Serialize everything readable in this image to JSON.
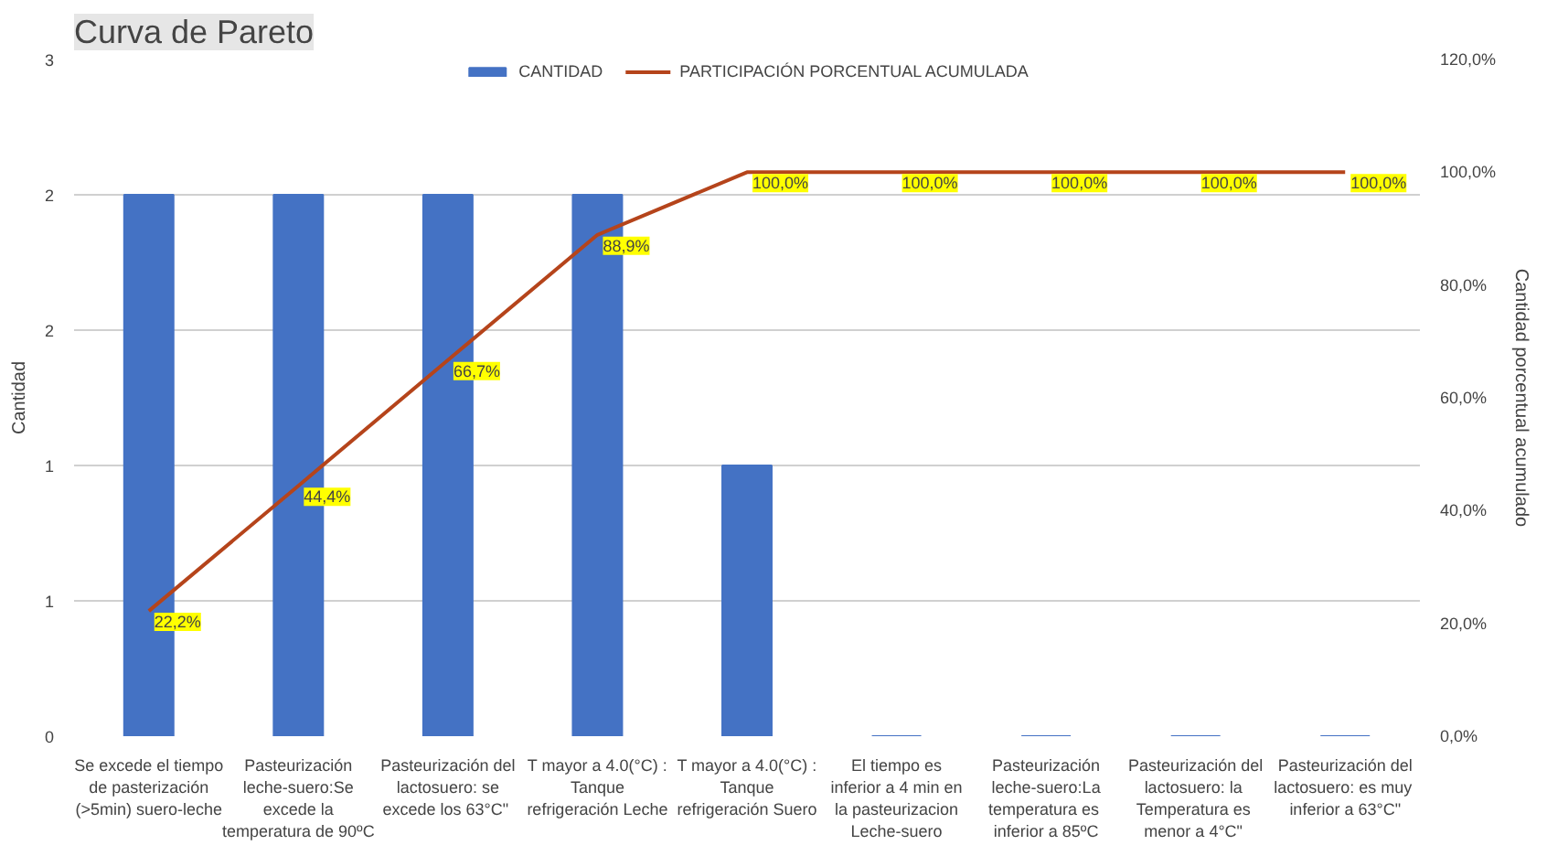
{
  "chart_data": {
    "type": "bar",
    "title": "Curva de Pareto",
    "ylabel": "Cantidad",
    "y2label": "Cantidad porcentual acumulado",
    "categories": [
      "Se excede el tiempo de pasterización (>5min) suero-leche",
      "Pasteurización leche-suero:Se excede la temperatura de 90ºC",
      "Pasteurización del lactosuero: se excede  los 63°C\"",
      "T mayor a 4.0(°C) : Tanque refrigeración Leche",
      "T mayor a 4.0(°C) : Tanque refrigeración Suero",
      "El tiempo es inferior a 4 min en la pasteurizacion Leche-suero",
      "Pasteurización leche-suero:La temperatura  es inferior a 85ºC",
      "Pasteurización del lactosuero:  la Temperatura  es menor a  4°C\"",
      "Pasteurización del lactosuero:  es muy inferior a 63°C\""
    ],
    "series": [
      {
        "name": "CANTIDAD",
        "color": "#4472c4",
        "values": [
          2,
          2,
          2,
          2,
          1,
          0,
          0,
          0,
          0
        ]
      },
      {
        "name": "PARTICIPACIÓN PORCENTUAL ACUMULADA",
        "type": "line",
        "axis": "y2",
        "color": "#b5441b",
        "values": [
          22.2,
          44.4,
          66.7,
          88.9,
          100,
          100,
          100,
          100,
          100
        ],
        "value_labels": [
          "22,2%",
          "44,4%",
          "66,7%",
          "88,9%",
          "100,0%",
          "100,0%",
          "100,0%",
          "100,0%",
          "100,0%"
        ]
      }
    ],
    "ylim": [
      0,
      2.5
    ],
    "yticks": [
      {
        "value": 0,
        "label": "0"
      },
      {
        "value": 0.5,
        "label": "1"
      },
      {
        "value": 1,
        "label": "1"
      },
      {
        "value": 1.5,
        "label": "2"
      },
      {
        "value": 2,
        "label": "2"
      },
      {
        "value": 2.5,
        "label": "3"
      }
    ],
    "y2lim": [
      0,
      120
    ],
    "y2ticks": [
      {
        "value": 0,
        "label": "0,0%"
      },
      {
        "value": 20,
        "label": "20,0%"
      },
      {
        "value": 40,
        "label": "40,0%"
      },
      {
        "value": 60,
        "label": "60,0%"
      },
      {
        "value": 80,
        "label": "80,0%"
      },
      {
        "value": 100,
        "label": "100,0%"
      },
      {
        "value": 120,
        "label": "120,0%"
      }
    ],
    "grid": "y",
    "legend": "top",
    "marker": "none",
    "line_style": "solid"
  }
}
